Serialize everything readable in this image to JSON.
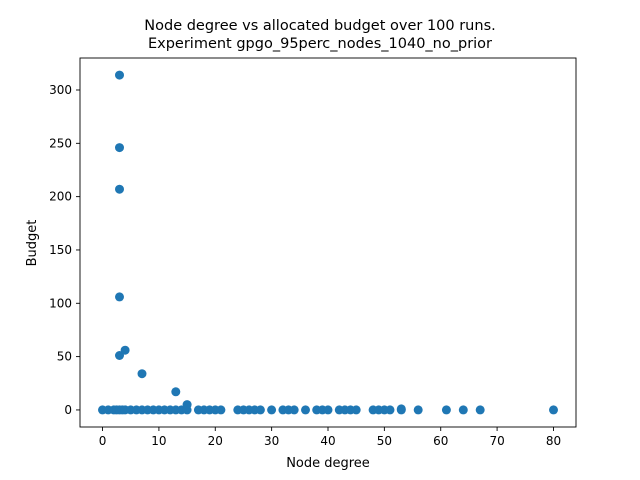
{
  "chart_data": {
    "type": "scatter",
    "title_line1": "Node degree vs allocated budget over 100 runs.",
    "title_line2": "Experiment gpgo_95perc_nodes_1040_no_prior",
    "xlabel": "Node degree",
    "ylabel": "Budget",
    "xlim": [
      -4,
      84
    ],
    "ylim": [
      -16,
      330
    ],
    "xticks": [
      0,
      10,
      20,
      30,
      40,
      50,
      60,
      70,
      80
    ],
    "yticks": [
      0,
      50,
      100,
      150,
      200,
      250,
      300
    ],
    "grid": false,
    "legend": "none",
    "marker_color": "#1f77b4",
    "points": [
      [
        0,
        0
      ],
      [
        1,
        0
      ],
      [
        2,
        0
      ],
      [
        2.5,
        0
      ],
      [
        3,
        0
      ],
      [
        3.5,
        0
      ],
      [
        4,
        0
      ],
      [
        5,
        0
      ],
      [
        6,
        0
      ],
      [
        7,
        0
      ],
      [
        8,
        0
      ],
      [
        9,
        0
      ],
      [
        10,
        0
      ],
      [
        11,
        0
      ],
      [
        12,
        0
      ],
      [
        13,
        0
      ],
      [
        14,
        0
      ],
      [
        15,
        0
      ],
      [
        17,
        0
      ],
      [
        18,
        0
      ],
      [
        19,
        0
      ],
      [
        20,
        0
      ],
      [
        21,
        0
      ],
      [
        24,
        0
      ],
      [
        25,
        0
      ],
      [
        26,
        0
      ],
      [
        27,
        0
      ],
      [
        28,
        0
      ],
      [
        30,
        0
      ],
      [
        32,
        0
      ],
      [
        33,
        0
      ],
      [
        34,
        0
      ],
      [
        36,
        0
      ],
      [
        38,
        0
      ],
      [
        39,
        0
      ],
      [
        40,
        0
      ],
      [
        42,
        0
      ],
      [
        43,
        0
      ],
      [
        44,
        0
      ],
      [
        45,
        0
      ],
      [
        48,
        0
      ],
      [
        49,
        0
      ],
      [
        50,
        0
      ],
      [
        51,
        0
      ],
      [
        53,
        0
      ],
      [
        56,
        0
      ],
      [
        61,
        0
      ],
      [
        64,
        0
      ],
      [
        67,
        0
      ],
      [
        80,
        0
      ],
      [
        3,
        314
      ],
      [
        3,
        246
      ],
      [
        3,
        207
      ],
      [
        3,
        106
      ],
      [
        3,
        51
      ],
      [
        4,
        56
      ],
      [
        7,
        34
      ],
      [
        13,
        17
      ],
      [
        15,
        5
      ],
      [
        53,
        1
      ]
    ]
  }
}
